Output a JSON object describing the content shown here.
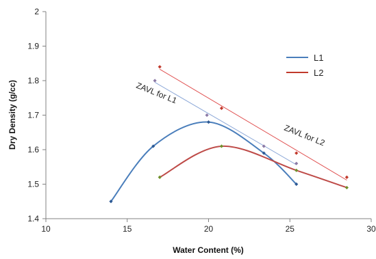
{
  "chart_data": {
    "type": "scatter",
    "title": "",
    "xlabel": "Water Content (%)",
    "ylabel": "Dry Density (g/cc)",
    "xlim": [
      10,
      30
    ],
    "ylim": [
      1.4,
      2.0
    ],
    "x_ticks": [
      "10",
      "15",
      "20",
      "25",
      "30"
    ],
    "y_ticks": [
      "1.4",
      "1.5",
      "1.6",
      "1.7",
      "1.8",
      "1.9",
      "2"
    ],
    "grid": false,
    "legend_position": "right",
    "series": [
      {
        "name": "L1",
        "color": "#4a7ebb",
        "style": "smooth-curve",
        "points": [
          [
            14.0,
            1.45
          ],
          [
            16.6,
            1.61
          ],
          [
            20.0,
            1.68
          ],
          [
            23.4,
            1.59
          ],
          [
            25.4,
            1.5
          ]
        ]
      },
      {
        "name": "L2",
        "color": "#be4b48",
        "style": "smooth-curve",
        "points": [
          [
            17.0,
            1.52
          ],
          [
            20.8,
            1.61
          ],
          [
            25.4,
            1.54
          ],
          [
            28.5,
            1.49
          ]
        ]
      },
      {
        "name": "ZAVL for L1",
        "color": "#8ea9d8",
        "style": "straight-line",
        "points": [
          [
            16.7,
            1.8
          ],
          [
            19.9,
            1.7
          ],
          [
            23.4,
            1.61
          ],
          [
            25.4,
            1.56
          ]
        ]
      },
      {
        "name": "ZAVL for L2",
        "color": "#e05050",
        "style": "straight-line",
        "points": [
          [
            17.0,
            1.84
          ],
          [
            20.8,
            1.72
          ],
          [
            25.4,
            1.59
          ],
          [
            28.5,
            1.52
          ]
        ]
      }
    ],
    "annotations": [
      "ZAVL for L1",
      "ZAVL for L2"
    ],
    "legend": [
      {
        "label": "L1",
        "color": "#4a7ebb"
      },
      {
        "label": "L2",
        "color": "#c0392b"
      }
    ]
  }
}
